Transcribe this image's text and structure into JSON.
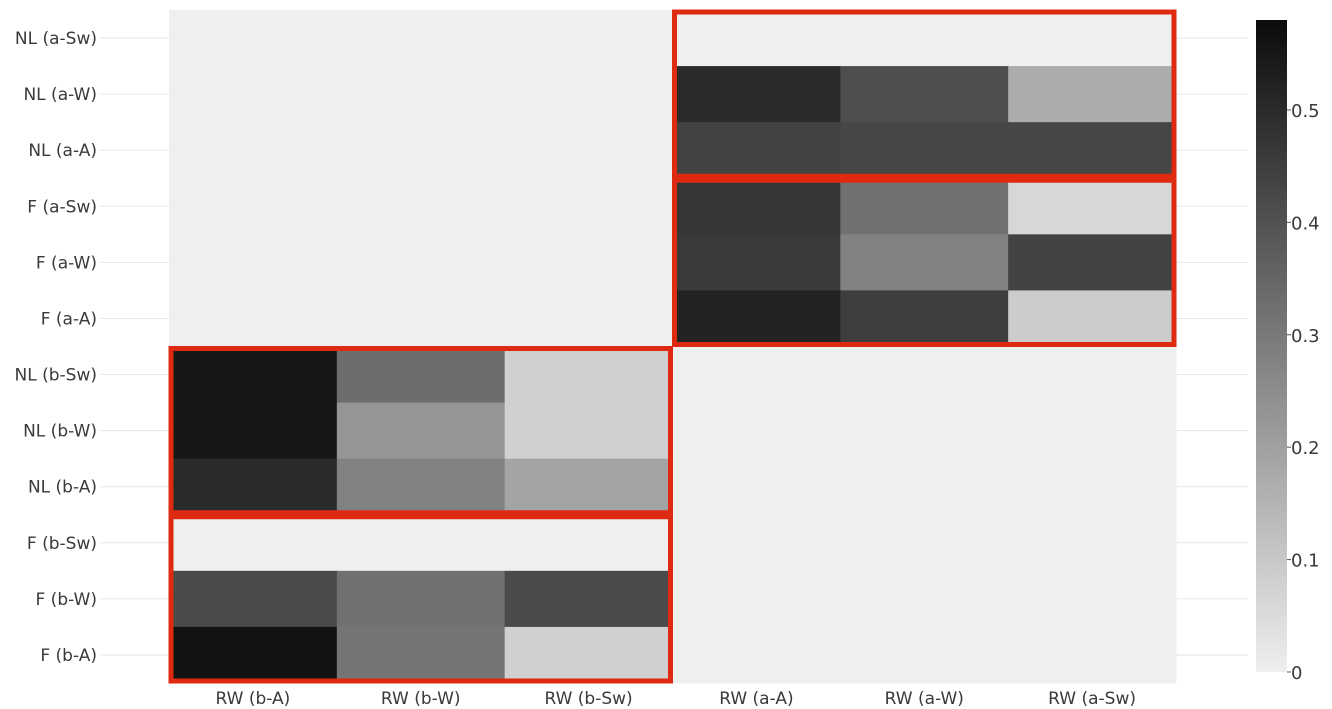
{
  "chart_data": {
    "type": "heatmap",
    "title": "",
    "xlabel": "",
    "ylabel": "",
    "x_categories": [
      "RW (b-A)",
      "RW (b-W)",
      "RW (b-Sw)",
      "RW (a-A)",
      "RW (a-W)",
      "RW (a-Sw)"
    ],
    "y_categories": [
      "NL (a-Sw)",
      "NL (a-W)",
      "NL (a-A)",
      "F (a-Sw)",
      "F (a-W)",
      "F (a-A)",
      "NL (b-Sw)",
      "NL (b-W)",
      "NL (b-A)",
      "F (b-Sw)",
      "F (b-W)",
      "F (b-A)"
    ],
    "values": [
      [
        0,
        0,
        0,
        0,
        0,
        0
      ],
      [
        0,
        0,
        0,
        0.5,
        0.41,
        0.17
      ],
      [
        0,
        0,
        0,
        0.44,
        0.43,
        0.43
      ],
      [
        0,
        0,
        0,
        0.47,
        0.32,
        0.06
      ],
      [
        0,
        0,
        0,
        0.46,
        0.28,
        0.44
      ],
      [
        0,
        0,
        0,
        0.52,
        0.45,
        0.09
      ],
      [
        0.55,
        0.33,
        0.08,
        0,
        0,
        0
      ],
      [
        0.55,
        0.23,
        0.08,
        0,
        0,
        0
      ],
      [
        0.5,
        0.28,
        0.19,
        0,
        0,
        0
      ],
      [
        0,
        0,
        0,
        0,
        0,
        0
      ],
      [
        0.42,
        0.32,
        0.42,
        0,
        0,
        0
      ],
      [
        0.56,
        0.31,
        0.08,
        0,
        0,
        0
      ]
    ],
    "zlim": [
      0,
      0.58
    ],
    "colorbar": {
      "ticks": [
        0,
        0.1,
        0.2,
        0.3,
        0.4,
        0.5
      ],
      "tick_labels": [
        "0",
        "0.1",
        "0.2",
        "0.3",
        "0.4",
        "0.5"
      ],
      "placement": "right"
    },
    "colors": {
      "low": "#efefef",
      "high": "#0b0b0b",
      "highlight": "#dd2a10",
      "gridline": "#e6e6e6"
    },
    "highlight_boxes": [
      {
        "x_from": 3,
        "x_to": 5,
        "y_from": 0,
        "y_to": 2
      },
      {
        "x_from": 3,
        "x_to": 5,
        "y_from": 3,
        "y_to": 5
      },
      {
        "x_from": 0,
        "x_to": 2,
        "y_from": 6,
        "y_to": 8
      },
      {
        "x_from": 0,
        "x_to": 2,
        "y_from": 9,
        "y_to": 11
      }
    ],
    "grid": true,
    "legend": "none"
  }
}
